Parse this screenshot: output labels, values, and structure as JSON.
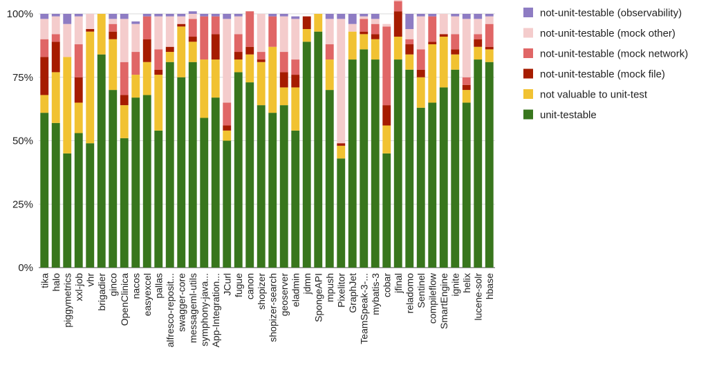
{
  "chart_data": {
    "type": "bar",
    "stacked": true,
    "title": "",
    "xlabel": "",
    "ylabel": "",
    "ylim": [
      0,
      100
    ],
    "yticks": [
      0,
      25,
      50,
      75,
      100
    ],
    "ytick_labels": [
      "0%",
      "25%",
      "50%",
      "75%",
      "100%"
    ],
    "grid": true,
    "legend_position": "right",
    "categories": [
      "tika",
      "halo",
      "piggymetrics",
      "xxl-job",
      "vhr",
      "brigadier",
      "ginco",
      "OpenClinica",
      "nacos",
      "easyexcel",
      "pallas",
      "alfresco-reposit...",
      "swagger-core",
      "messageml-utils",
      "symphony-java...",
      "App-Integration...",
      "JCurl",
      "fugue",
      "canon",
      "shopizer",
      "shopizer-search",
      "geoserver",
      "eladmin",
      "jdmn",
      "SpongeAPI",
      "mpush",
      "Pixelitor",
      "GraphJet",
      "TeamSpeak-3-...",
      "mybatis-3",
      "cobar",
      "jfinal",
      "reladomo",
      "Sentinel",
      "compileflow",
      "SmartEngine",
      "ignite",
      "helix",
      "lucene-solr",
      "hbase"
    ],
    "series": [
      {
        "name": "unit-testable",
        "color": "#38761d",
        "values": [
          61,
          57,
          45,
          53,
          49,
          84,
          70,
          51,
          67,
          68,
          54,
          81,
          75,
          81,
          59,
          67,
          50,
          77,
          73,
          64,
          61,
          64,
          54,
          89,
          93,
          70,
          43,
          82,
          86,
          82,
          45,
          82,
          78,
          63,
          65,
          71,
          78,
          65,
          82,
          81
        ]
      },
      {
        "name": "not valuable to unit-test",
        "color": "#f1c232",
        "values": [
          7,
          20,
          38,
          12,
          44,
          16,
          20,
          13,
          9,
          13,
          22,
          4,
          20,
          8,
          23,
          15,
          4,
          5,
          11,
          17,
          26,
          7,
          17,
          5,
          7,
          12,
          5,
          11,
          6,
          8,
          11,
          9,
          6,
          12,
          23,
          20,
          6,
          5,
          5,
          5
        ]
      },
      {
        "name": "not-unit-testable (mock file)",
        "color": "#a61c00",
        "values": [
          15,
          12,
          0,
          10,
          1,
          0,
          3,
          4,
          0,
          9,
          2,
          2,
          1,
          2,
          0,
          10,
          2,
          3,
          3,
          1,
          0,
          6,
          5,
          5,
          0,
          0,
          1,
          0,
          1,
          2,
          8,
          10,
          4,
          3,
          1,
          1,
          2,
          2,
          3,
          1
        ]
      },
      {
        "name": "not-unit-testable (mock network)",
        "color": "#e06666",
        "values": [
          7,
          3,
          0,
          13,
          0,
          0,
          3,
          13,
          9,
          9,
          8,
          0,
          0,
          7,
          17,
          7,
          9,
          7,
          14,
          3,
          12,
          8,
          6,
          0,
          0,
          6,
          0,
          0,
          5,
          4,
          31,
          4,
          2,
          8,
          10,
          0,
          6,
          3,
          2,
          9
        ]
      },
      {
        "name": "not-unit-testable (mock other)",
        "color": "#f4cccc",
        "values": [
          8,
          7,
          13,
          11,
          6,
          0,
          2,
          17,
          11,
          0,
          13,
          12,
          3,
          2,
          0,
          0,
          33,
          7,
          0,
          15,
          0,
          14,
          16,
          0,
          0,
          10,
          49,
          3,
          1,
          2,
          1,
          2,
          4,
          13,
          0,
          8,
          7,
          23,
          6,
          3
        ]
      },
      {
        "name": "not-unit-testable (observability)",
        "color": "#8e7cc3",
        "values": [
          2,
          1,
          4,
          1,
          0,
          0,
          2,
          2,
          1,
          1,
          1,
          1,
          1,
          1,
          1,
          1,
          2,
          1,
          0,
          0,
          1,
          1,
          1,
          0,
          0,
          2,
          2,
          4,
          1,
          2,
          0,
          1,
          6,
          1,
          1,
          0,
          1,
          2,
          2,
          1
        ]
      }
    ],
    "legend_order": [
      5,
      4,
      3,
      2,
      1,
      0
    ]
  }
}
